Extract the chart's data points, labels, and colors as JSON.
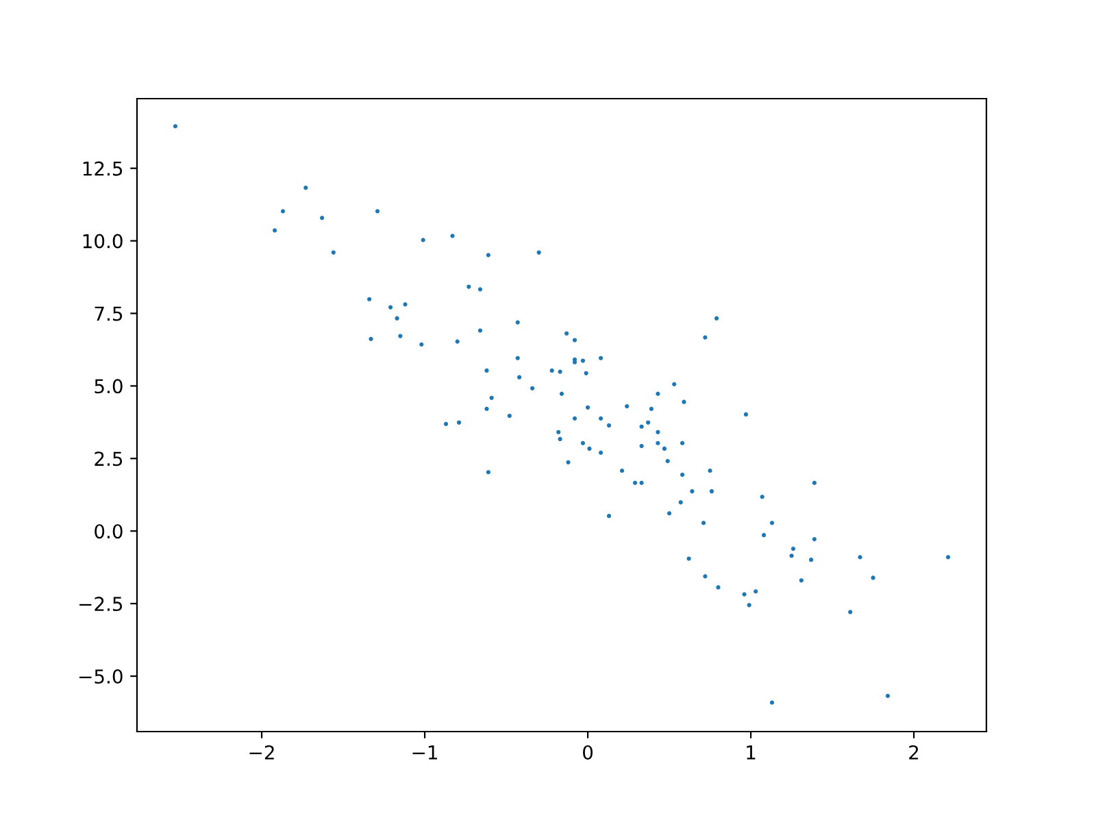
{
  "chart_data": {
    "type": "scatter",
    "x": [
      -2.53,
      -1.92,
      -1.87,
      -1.73,
      -1.63,
      -1.56,
      -1.34,
      -1.29,
      -1.33,
      -1.21,
      -1.17,
      -1.12,
      -1.15,
      -1.02,
      -1.01,
      -0.83,
      -0.87,
      -0.79,
      -0.8,
      -0.73,
      -0.66,
      -0.66,
      -0.61,
      -0.62,
      -0.61,
      -0.59,
      -0.48,
      -0.43,
      -0.43,
      -0.42,
      -0.3,
      -0.34,
      -0.13,
      -0.08,
      -0.08,
      -0.08,
      -0.03,
      0.08,
      -0.22,
      -0.17,
      -0.01,
      -0.16,
      -0.62,
      0.0,
      0.24,
      -0.08,
      0.08,
      0.13,
      -0.18,
      -0.17,
      -0.03,
      0.01,
      0.08,
      -0.12,
      0.21,
      0.29,
      0.33,
      0.13,
      0.43,
      0.53,
      0.59,
      0.39,
      0.37,
      0.33,
      0.33,
      0.43,
      0.43,
      0.47,
      0.58,
      0.49,
      0.58,
      0.75,
      0.64,
      0.76,
      0.57,
      0.5,
      0.71,
      0.62,
      0.72,
      0.79,
      0.97,
      1.39,
      1.07,
      1.13,
      1.08,
      1.39,
      1.26,
      1.25,
      1.37,
      1.67,
      2.21,
      1.75,
      1.31,
      0.72,
      0.8,
      0.96,
      1.03,
      0.99,
      1.61,
      1.13,
      1.84
    ],
    "values": [
      13.95,
      10.36,
      11.02,
      11.83,
      10.79,
      9.6,
      7.99,
      11.02,
      6.62,
      7.71,
      7.33,
      7.81,
      6.72,
      6.43,
      10.03,
      10.17,
      3.69,
      3.74,
      6.53,
      8.42,
      8.33,
      6.91,
      9.51,
      5.53,
      2.03,
      4.59,
      3.97,
      7.19,
      5.96,
      5.3,
      9.6,
      4.92,
      6.81,
      6.58,
      5.91,
      5.82,
      5.87,
      5.96,
      5.53,
      5.49,
      5.44,
      4.73,
      4.21,
      4.26,
      4.3,
      3.88,
      3.88,
      3.64,
      3.41,
      3.17,
      3.03,
      2.84,
      2.7,
      2.37,
      2.08,
      1.66,
      1.66,
      0.52,
      4.73,
      5.06,
      4.45,
      4.21,
      3.74,
      3.6,
      2.93,
      3.41,
      3.03,
      2.84,
      3.03,
      2.41,
      1.94,
      2.08,
      1.37,
      1.37,
      0.99,
      0.61,
      0.28,
      -0.95,
      6.67,
      7.33,
      4.02,
      1.66,
      1.18,
      0.28,
      -0.14,
      -0.28,
      -0.61,
      -0.85,
      -0.99,
      -0.9,
      -0.9,
      -1.61,
      -1.7,
      -1.56,
      -1.94,
      -2.18,
      -2.08,
      -2.55,
      -2.79,
      -5.91,
      -5.68
    ],
    "color": "#1f77b4",
    "marker": "circle",
    "grid": false,
    "xlim": [
      -2.765,
      2.445
    ],
    "ylim": [
      -6.91,
      14.9
    ],
    "xticks": [
      {
        "value": -2,
        "label": "−2"
      },
      {
        "value": -1,
        "label": "−1"
      },
      0,
      1,
      2
    ],
    "yticks": [
      {
        "value": -5,
        "label": "−5.0"
      },
      {
        "value": -2.5,
        "label": "−2.5"
      },
      {
        "value": 0,
        "label": "0.0"
      },
      2.5,
      {
        "value": 5,
        "label": "5.0"
      },
      7.5,
      {
        "value": 10,
        "label": "10.0"
      },
      12.5
    ]
  }
}
